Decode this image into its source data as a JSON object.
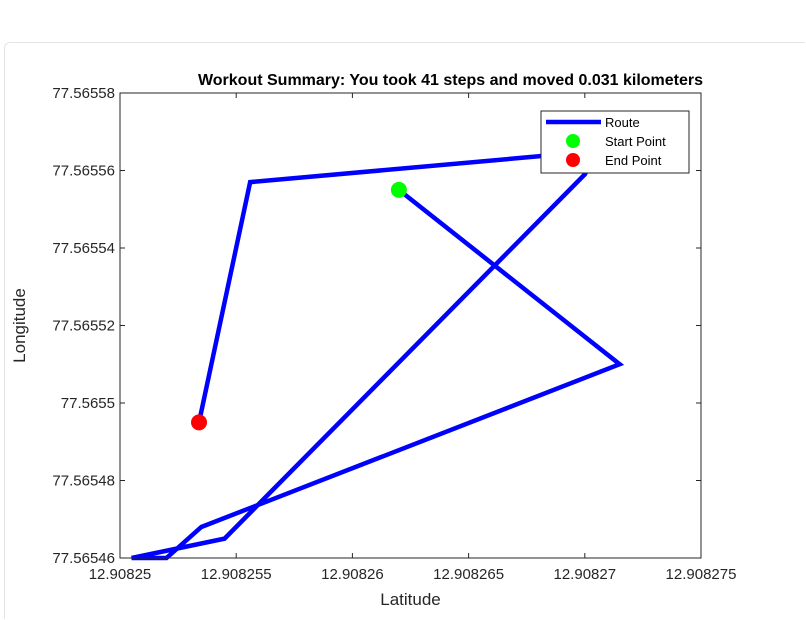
{
  "chart_data": {
    "type": "line",
    "title": "Workout Summary: You took 41 steps and moved 0.031 kilometers",
    "xlabel": "Latitude",
    "ylabel": "Longitude",
    "xlim": [
      12.90825,
      12.908275
    ],
    "ylim": [
      77.56546,
      77.56558
    ],
    "xticks": [
      12.90825,
      12.908255,
      12.90826,
      12.908265,
      12.90827,
      12.908275
    ],
    "xtick_labels": [
      "12.90825",
      "12.908255",
      "12.90826",
      "12.908265",
      "12.90827",
      "12.908275"
    ],
    "yticks": [
      77.56546,
      77.56548,
      77.5655,
      77.56552,
      77.56554,
      77.56556,
      77.56558
    ],
    "ytick_labels": [
      "77.56546",
      "77.56548",
      "77.5655",
      "77.56552",
      "77.56554",
      "77.56556",
      "77.56558"
    ],
    "grid": false,
    "legend_position": "top-right",
    "series": [
      {
        "name": "Route",
        "color": "#0000ff",
        "x": [
          12.908262,
          12.9082715,
          12.9082535,
          12.908252,
          12.9082505,
          12.9082545,
          12.90827,
          12.9082705,
          12.9082556,
          12.9082534
        ],
        "y": [
          77.565555,
          77.56551,
          77.565468,
          77.56546,
          77.56546,
          77.565465,
          77.565559,
          77.565565,
          77.565557,
          77.565495
        ]
      },
      {
        "name": "Start Point",
        "type": "scatter",
        "color": "#00ff00",
        "x": [
          12.908262
        ],
        "y": [
          77.565555
        ]
      },
      {
        "name": "End Point",
        "type": "scatter",
        "color": "#ff0000",
        "x": [
          12.9082534
        ],
        "y": [
          77.565495
        ]
      }
    ]
  }
}
